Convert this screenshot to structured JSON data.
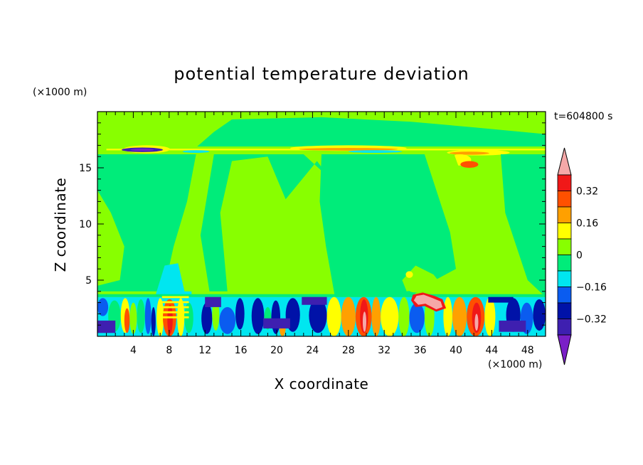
{
  "chart_data": {
    "type": "heatmap",
    "title": "potential temperature deviation",
    "xlabel": "X coordinate",
    "ylabel": "Z coordinate",
    "x_unit": "(×1000 m)",
    "z_unit": "(×1000 m)",
    "time_label": "t=604800 s",
    "xlim": [
      0,
      50
    ],
    "ylim": [
      0,
      20
    ],
    "x_ticks": [
      4,
      8,
      12,
      16,
      20,
      24,
      28,
      32,
      36,
      40,
      44,
      48
    ],
    "y_ticks": [
      5,
      10,
      15
    ],
    "colorbar": {
      "levels": [
        -0.4,
        -0.32,
        -0.24,
        -0.16,
        -0.08,
        0,
        0.08,
        0.16,
        0.24,
        0.32,
        0.4
      ],
      "tick_values": [
        -0.32,
        -0.16,
        0,
        0.16,
        0.32
      ],
      "tick_labels": [
        "−0.32",
        "−0.16",
        "0",
        "0.16",
        "0.32"
      ],
      "colors": [
        "#7a1fc7",
        "#3e1fb0",
        "#0012a8",
        "#0a5cf0",
        "#00e6f0",
        "#00ec7a",
        "#88ff00",
        "#ffff00",
        "#ffa000",
        "#ff5000",
        "#f01818",
        "#f5a8a8"
      ],
      "extend": "both"
    },
    "regions": {
      "background_band": "0 to 0.08",
      "upper_layer_z": 16.5,
      "boundary_layer_top_z": 3.5
    }
  }
}
